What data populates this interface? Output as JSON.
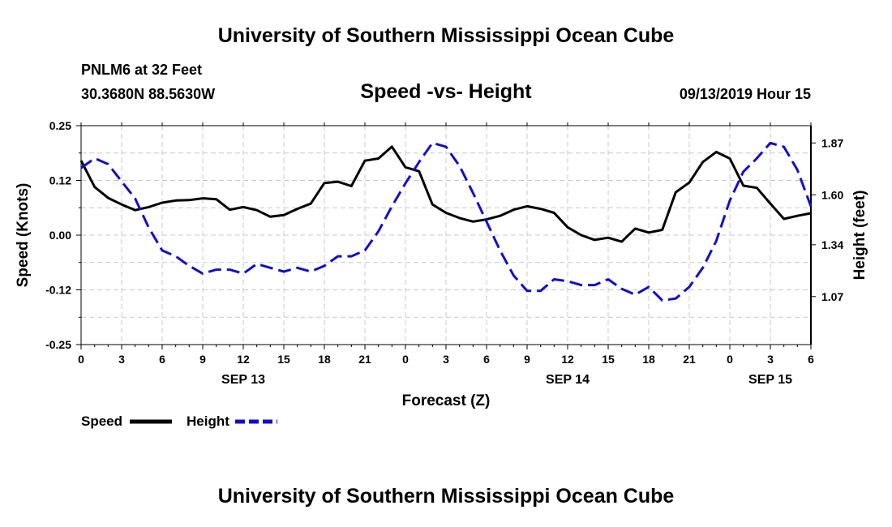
{
  "header": {
    "org_title": "University of Southern Mississippi Ocean Cube",
    "station": "PNLM6 at 32 Feet",
    "coordinates": "30.3680N 88.5630W",
    "issued": "09/13/2019 Hour 15"
  },
  "footer": {
    "org_title": "University of Southern Mississippi Ocean Cube"
  },
  "chart_data": {
    "type": "line",
    "title": "Speed -vs- Height",
    "xlabel": "Forecast (Z)",
    "ylabel": "Speed (Knots)",
    "y2label": "Height (feet)",
    "xlim": [
      0,
      54
    ],
    "ylim": [
      -0.25,
      0.25
    ],
    "y2lim": [
      0.82,
      1.96
    ],
    "grid": true,
    "x_ticks": [
      {
        "x": 0,
        "label": "0"
      },
      {
        "x": 3,
        "label": "3"
      },
      {
        "x": 6,
        "label": "6"
      },
      {
        "x": 9,
        "label": "9"
      },
      {
        "x": 12,
        "label": "12"
      },
      {
        "x": 15,
        "label": "15"
      },
      {
        "x": 18,
        "label": "18"
      },
      {
        "x": 21,
        "label": "21"
      },
      {
        "x": 24,
        "label": "0"
      },
      {
        "x": 27,
        "label": "3"
      },
      {
        "x": 30,
        "label": "6"
      },
      {
        "x": 33,
        "label": "9"
      },
      {
        "x": 36,
        "label": "12"
      },
      {
        "x": 39,
        "label": "15"
      },
      {
        "x": 42,
        "label": "18"
      },
      {
        "x": 45,
        "label": "21"
      },
      {
        "x": 48,
        "label": "0"
      },
      {
        "x": 51,
        "label": "3"
      },
      {
        "x": 54,
        "label": "6"
      }
    ],
    "date_labels": [
      {
        "x": 12,
        "label": "SEP 13"
      },
      {
        "x": 36,
        "label": "SEP 14"
      },
      {
        "x": 51,
        "label": "SEP 15"
      }
    ],
    "y_ticks": [
      {
        "v": 0.25,
        "label": "0.25"
      },
      {
        "v": 0.125,
        "label": "0.12"
      },
      {
        "v": 0.0,
        "label": "0.00"
      },
      {
        "v": -0.125,
        "label": "-0.12"
      },
      {
        "v": -0.25,
        "label": "-0.25"
      }
    ],
    "y2_ticks": [
      {
        "v": 1.87,
        "label": "1.87"
      },
      {
        "v": 1.6,
        "label": "1.60"
      },
      {
        "v": 1.34,
        "label": "1.34"
      },
      {
        "v": 1.07,
        "label": "1.07"
      }
    ],
    "series": [
      {
        "name": "Speed",
        "axis": "left",
        "color": "#000000",
        "style": "solid",
        "x": [
          0,
          1,
          2,
          3,
          4,
          5,
          6,
          7,
          8,
          9,
          10,
          11,
          12,
          13,
          14,
          15,
          16,
          17,
          18,
          19,
          20,
          21,
          22,
          23,
          24,
          25,
          26,
          27,
          28,
          29,
          30,
          31,
          32,
          33,
          34,
          35,
          36,
          37,
          38,
          39,
          40,
          41,
          42,
          43,
          44,
          45,
          46,
          47,
          48,
          49,
          50,
          51,
          52,
          53,
          54
        ],
        "values": [
          0.17,
          0.11,
          0.085,
          0.07,
          0.057,
          0.064,
          0.074,
          0.079,
          0.08,
          0.084,
          0.082,
          0.058,
          0.064,
          0.057,
          0.042,
          0.046,
          0.06,
          0.072,
          0.119,
          0.122,
          0.112,
          0.17,
          0.175,
          0.202,
          0.155,
          0.146,
          0.07,
          0.051,
          0.039,
          0.031,
          0.036,
          0.044,
          0.058,
          0.066,
          0.06,
          0.051,
          0.018,
          0.0,
          -0.011,
          -0.006,
          -0.015,
          0.015,
          0.006,
          0.012,
          0.098,
          0.12,
          0.167,
          0.19,
          0.175,
          0.113,
          0.108,
          0.072,
          0.037,
          0.044,
          0.05
        ]
      },
      {
        "name": "Height",
        "axis": "right",
        "color": "#1010cc",
        "style": "dashed",
        "x": [
          0,
          1,
          2,
          3,
          4,
          5,
          6,
          7,
          8,
          9,
          10,
          11,
          12,
          13,
          14,
          15,
          16,
          17,
          18,
          19,
          20,
          21,
          22,
          23,
          24,
          25,
          26,
          27,
          28,
          29,
          30,
          31,
          32,
          33,
          34,
          35,
          36,
          37,
          38,
          39,
          40,
          41,
          42,
          43,
          44,
          45,
          46,
          47,
          48,
          49,
          50,
          51,
          52,
          53,
          54
        ],
        "values": [
          1.74,
          1.79,
          1.76,
          1.67,
          1.58,
          1.43,
          1.31,
          1.28,
          1.23,
          1.19,
          1.21,
          1.21,
          1.19,
          1.24,
          1.22,
          1.2,
          1.22,
          1.2,
          1.23,
          1.28,
          1.28,
          1.31,
          1.41,
          1.54,
          1.66,
          1.77,
          1.87,
          1.85,
          1.75,
          1.61,
          1.46,
          1.31,
          1.18,
          1.1,
          1.1,
          1.16,
          1.15,
          1.13,
          1.13,
          1.16,
          1.11,
          1.08,
          1.12,
          1.05,
          1.06,
          1.12,
          1.22,
          1.36,
          1.57,
          1.72,
          1.79,
          1.87,
          1.85,
          1.73,
          1.54
        ]
      }
    ],
    "legend": {
      "placement": "bottom-left",
      "entries": [
        {
          "label": "Speed",
          "color": "#000000",
          "style": "solid"
        },
        {
          "label": "Height",
          "color": "#1010cc",
          "style": "dashed"
        }
      ]
    }
  }
}
